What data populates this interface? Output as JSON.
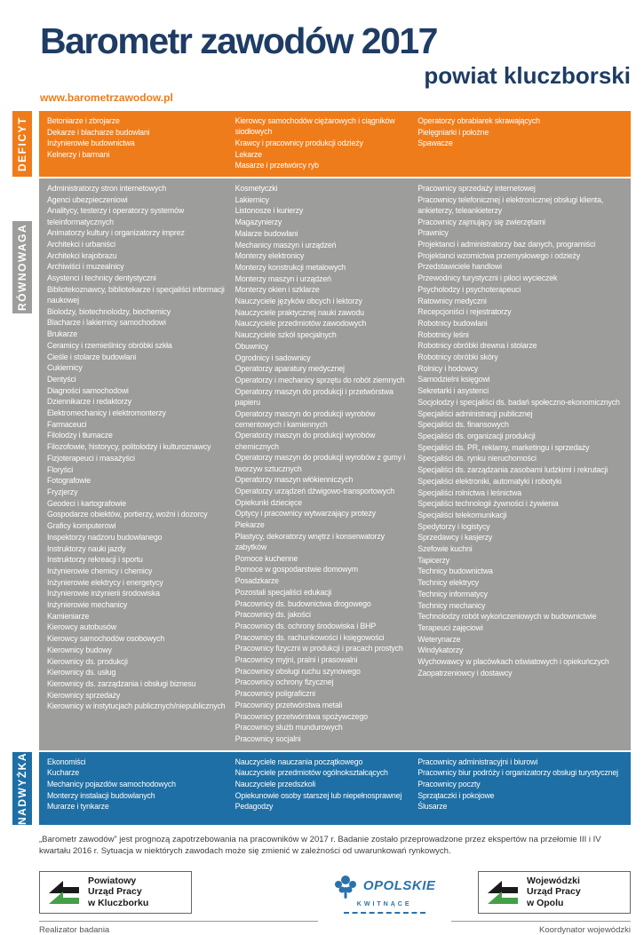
{
  "header": {
    "title": "Barometr zawodów 2017",
    "subtitle": "powiat kluczborski",
    "url": "www.barometrzawodow.pl"
  },
  "colors": {
    "navy": "#1e3c64",
    "orange": "#ef7c1a",
    "gray": "#9d9d9c",
    "blue": "#1d6fa5"
  },
  "icons": {
    "pup_logo": "green-black-double-arrow-emblem",
    "opolskie_logo": "blue-flower-tree"
  },
  "sections": [
    {
      "id": "deficyt",
      "label": "DEFICYT",
      "color": "#ef7c1a",
      "columns": [
        [
          "Betoniarze i zbrojarze",
          "Dekarze i blacharze budowlani",
          "Inżynierowie budownictwa",
          "Kelnerzy i barmani"
        ],
        [
          "Kierowcy samochodów ciężarowych i ciągników siodłowych",
          "Krawcy i pracownicy produkcji odzieży",
          "Lekarze",
          "Masarze i przetwórcy ryb"
        ],
        [
          "Operatorzy obrabiarek skrawających",
          "Pielęgniarki i położne",
          "Spawacze"
        ]
      ]
    },
    {
      "id": "rownowaga",
      "label": "RÓWNOWAGA",
      "color": "#9d9d9c",
      "columns": [
        [
          "Administratorzy stron internetowych",
          "Agenci ubezpieczeniowi",
          "Analitycy, testerzy i operatorzy systemów teleinformatycznych",
          "Animatorzy kultury i organizatorzy imprez",
          "Architekci i urbaniści",
          "Architekci krajobrazu",
          "Archiwiści i muzealnicy",
          "Asystenci i technicy dentystyczni",
          "Bibliotekoznawcy, bibliotekarze i specjaliści informacji naukowej",
          "Biolodzy, biotechnolodzy, biochemicy",
          "Blacharze i lakiernicy samochodowi",
          "Brukarze",
          "Ceramicy i rzemieślnicy obróbki szkła",
          "Cieśle i stolarze budowlani",
          "Cukiernicy",
          "Dentyści",
          "Diagności samochodowi",
          "Dziennikarze i redaktorzy",
          "Elektromechanicy i elektromonterzy",
          "Farmaceuci",
          "Filolodzy i tłumacze",
          "Filozofowie, historycy, politolodzy i kulturoznawcy",
          "Fizjoterapeuci i masażyści",
          "Floryści",
          "Fotografowie",
          "Fryzjerzy",
          "Geodeci i kartografowie",
          "Gospodarze obiektów, portierzy, woźni i dozorcy",
          "Graficy komputerowi",
          "Inspektorzy nadzoru budowlanego",
          "Instruktorzy nauki jazdy",
          "Instruktorzy rekreacji i sportu",
          "Inżynierowie chemicy i chemicy",
          "Inżynierowie elektrycy i energetycy",
          "Inżynierowie inżynierii środowiska",
          "Inżynierowie mechanicy",
          "Kamieniarze",
          "Kierowcy autobusów",
          "Kierowcy samochodów osobowych",
          "Kierownicy budowy",
          "Kierownicy ds. produkcji",
          "Kierownicy ds. usług",
          "Kierownicy ds. zarządzania i obsługi biznesu",
          "Kierownicy sprzedaży",
          "Kierownicy w instytucjach publicznych/niepublicznych"
        ],
        [
          "Kosmetyczki",
          "Lakiernicy",
          "Listonosze i kurierzy",
          "Magazynierzy",
          "Malarze budowlani",
          "Mechanicy maszyn i urządzeń",
          "Monterzy elektronicy",
          "Monterzy konstrukcji metalowych",
          "Monterzy maszyn i urządzeń",
          "Monterzy okien i szklarze",
          "Nauczyciele języków obcych i lektorzy",
          "Nauczyciele praktycznej nauki zawodu",
          "Nauczyciele przedmiotów zawodowych",
          "Nauczyciele szkół specjalnych",
          "Obuwnicy",
          "Ogrodnicy i sadownicy",
          "Operatorzy aparatury medycznej",
          "Operatorzy i mechanicy sprzętu do robót ziemnych",
          "Operatorzy maszyn do produkcji i przetwórstwa papieru",
          "Operatorzy maszyn do produkcji wyrobów cementowych i kamiennych",
          "Operatorzy maszyn do produkcji wyrobów chemicznych",
          "Operatorzy maszyn do produkcji wyrobów z gumy i tworzyw sztucznych",
          "Operatorzy maszyn włókienniczych",
          "Operatorzy urządzeń dźwigowo-transportowych",
          "Opiekunki dziecięce",
          "Optycy i pracownicy wytwarzający protezy",
          "Piekarze",
          "Plastycy, dekoratorzy wnętrz i konserwatorzy zabytków",
          "Pomoce kuchenne",
          "Pomoce w gospodarstwie domowym",
          "Posadzkarze",
          "Pozostali specjaliści edukacji",
          "Pracownicy ds. budownictwa drogowego",
          "Pracownicy ds. jakości",
          "Pracownicy ds. ochrony środowiska i BHP",
          "Pracownicy ds. rachunkowości i księgowości",
          "Pracownicy fizyczni w produkcji i pracach prostych",
          "Pracownicy myjni, pralni i prasowalni",
          "Pracownicy obsługi ruchu szynowego",
          "Pracownicy ochrony fizycznej",
          "Pracownicy poligraficzni",
          "Pracownicy przetwórstwa metali",
          "Pracownicy przetwórstwa spożywczego",
          "Pracownicy służb mundurowych",
          "Pracownicy socjalni"
        ],
        [
          "Pracownicy sprzedaży internetowej",
          "Pracownicy telefonicznej i elektronicznej obsługi klienta, ankieterzy, teleankieterzy",
          "Pracownicy zajmujący się zwierzętami",
          "Prawnicy",
          "Projektanci i administratorzy baz danych, programiści",
          "Projektanci wzornictwa przemysłowego i odzieży",
          "Przedstawiciele handlowi",
          "Przewodnicy turystyczni i piloci wycieczek",
          "Psycholodzy i psychoterapeuci",
          "Ratownicy medyczni",
          "Recepcjoniści i rejestratorzy",
          "Robotnicy budowlani",
          "Robotnicy leśni",
          "Robotnicy obróbki drewna i stolarze",
          "Robotnicy obróbki skóry",
          "Rolnicy i hodowcy",
          "Samodzielni księgowi",
          "Sekretarki i asystenci",
          "Socjolodzy i specjaliści ds. badań społeczno-ekonomicznych",
          "Specjaliści administracji publicznej",
          "Specjaliści ds. finansowych",
          "Specjaliści ds. organizacji produkcji",
          "Specjaliści ds. PR, reklamy, marketingu i sprzedaży",
          "Specjaliści ds. rynku nieruchomości",
          "Specjaliści ds. zarządzania zasobami ludzkimi i rekrutacji",
          "Specjaliści elektroniki, automatyki i robotyki",
          "Specjaliści rolnictwa i leśnictwa",
          "Specjaliści technologii żywności i żywienia",
          "Specjaliści telekomunikacji",
          "Spedytorzy i logistycy",
          "Sprzedawcy i kasjerzy",
          "Szefowie kuchni",
          "Tapicerzy",
          "Technicy budownictwa",
          "Technicy elektrycy",
          "Technicy informatycy",
          "Technicy mechanicy",
          "Technolodzy robót wykończeniowych w budownictwie",
          "Terapeuci zajęciowi",
          "Weterynarze",
          "Windykatorzy",
          "Wychowawcy w placówkach oświatowych i opiekuńczych",
          "Zaopatrzeniowcy i dostawcy"
        ]
      ]
    },
    {
      "id": "nadwyzka",
      "label": "NADWYŻKA",
      "color": "#1d6fa5",
      "columns": [
        [
          "Ekonomiści",
          "Kucharze",
          "Mechanicy pojazdów samochodowych",
          "Monterzy instalacji budowlanych",
          "Murarze i tynkarze"
        ],
        [
          "Nauczyciele nauczania początkowego",
          "Nauczyciele przedmiotów ogólnokształcących",
          "Nauczyciele przedszkoli",
          "Opiekunowie osoby starszej lub niepełnosprawnej",
          "Pedagodzy"
        ],
        [
          "Pracownicy administracyjni i biurowi",
          "Pracownicy biur podróży i organizatorzy obsługi turystycznej",
          "Pracownicy poczty",
          "Sprzątaczki i pokojowe",
          "Ślusarze"
        ]
      ]
    }
  ],
  "footnote": "„Barometr zawodów” jest prognozą zapotrzebowania na pracowników w 2017 r. Badanie zostało przeprowadzone przez ekspertów na przełomie III i IV kwartału 2016 r. Sytuacja w niektórych zawodach może się zmienić w zależności od uwarunkowań rynkowych.",
  "footer": {
    "left_org_lines": [
      "Powiatowy",
      "Urząd Pracy",
      "w Kluczborku"
    ],
    "left_caption": "Realizator badania",
    "center_logo": {
      "name": "OPOLSKIE",
      "tagline": "KWITNĄCE"
    },
    "right_org_lines": [
      "Wojewódzki",
      "Urząd Pracy",
      "w Opolu"
    ],
    "right_caption": "Koordynator wojewódzki"
  }
}
